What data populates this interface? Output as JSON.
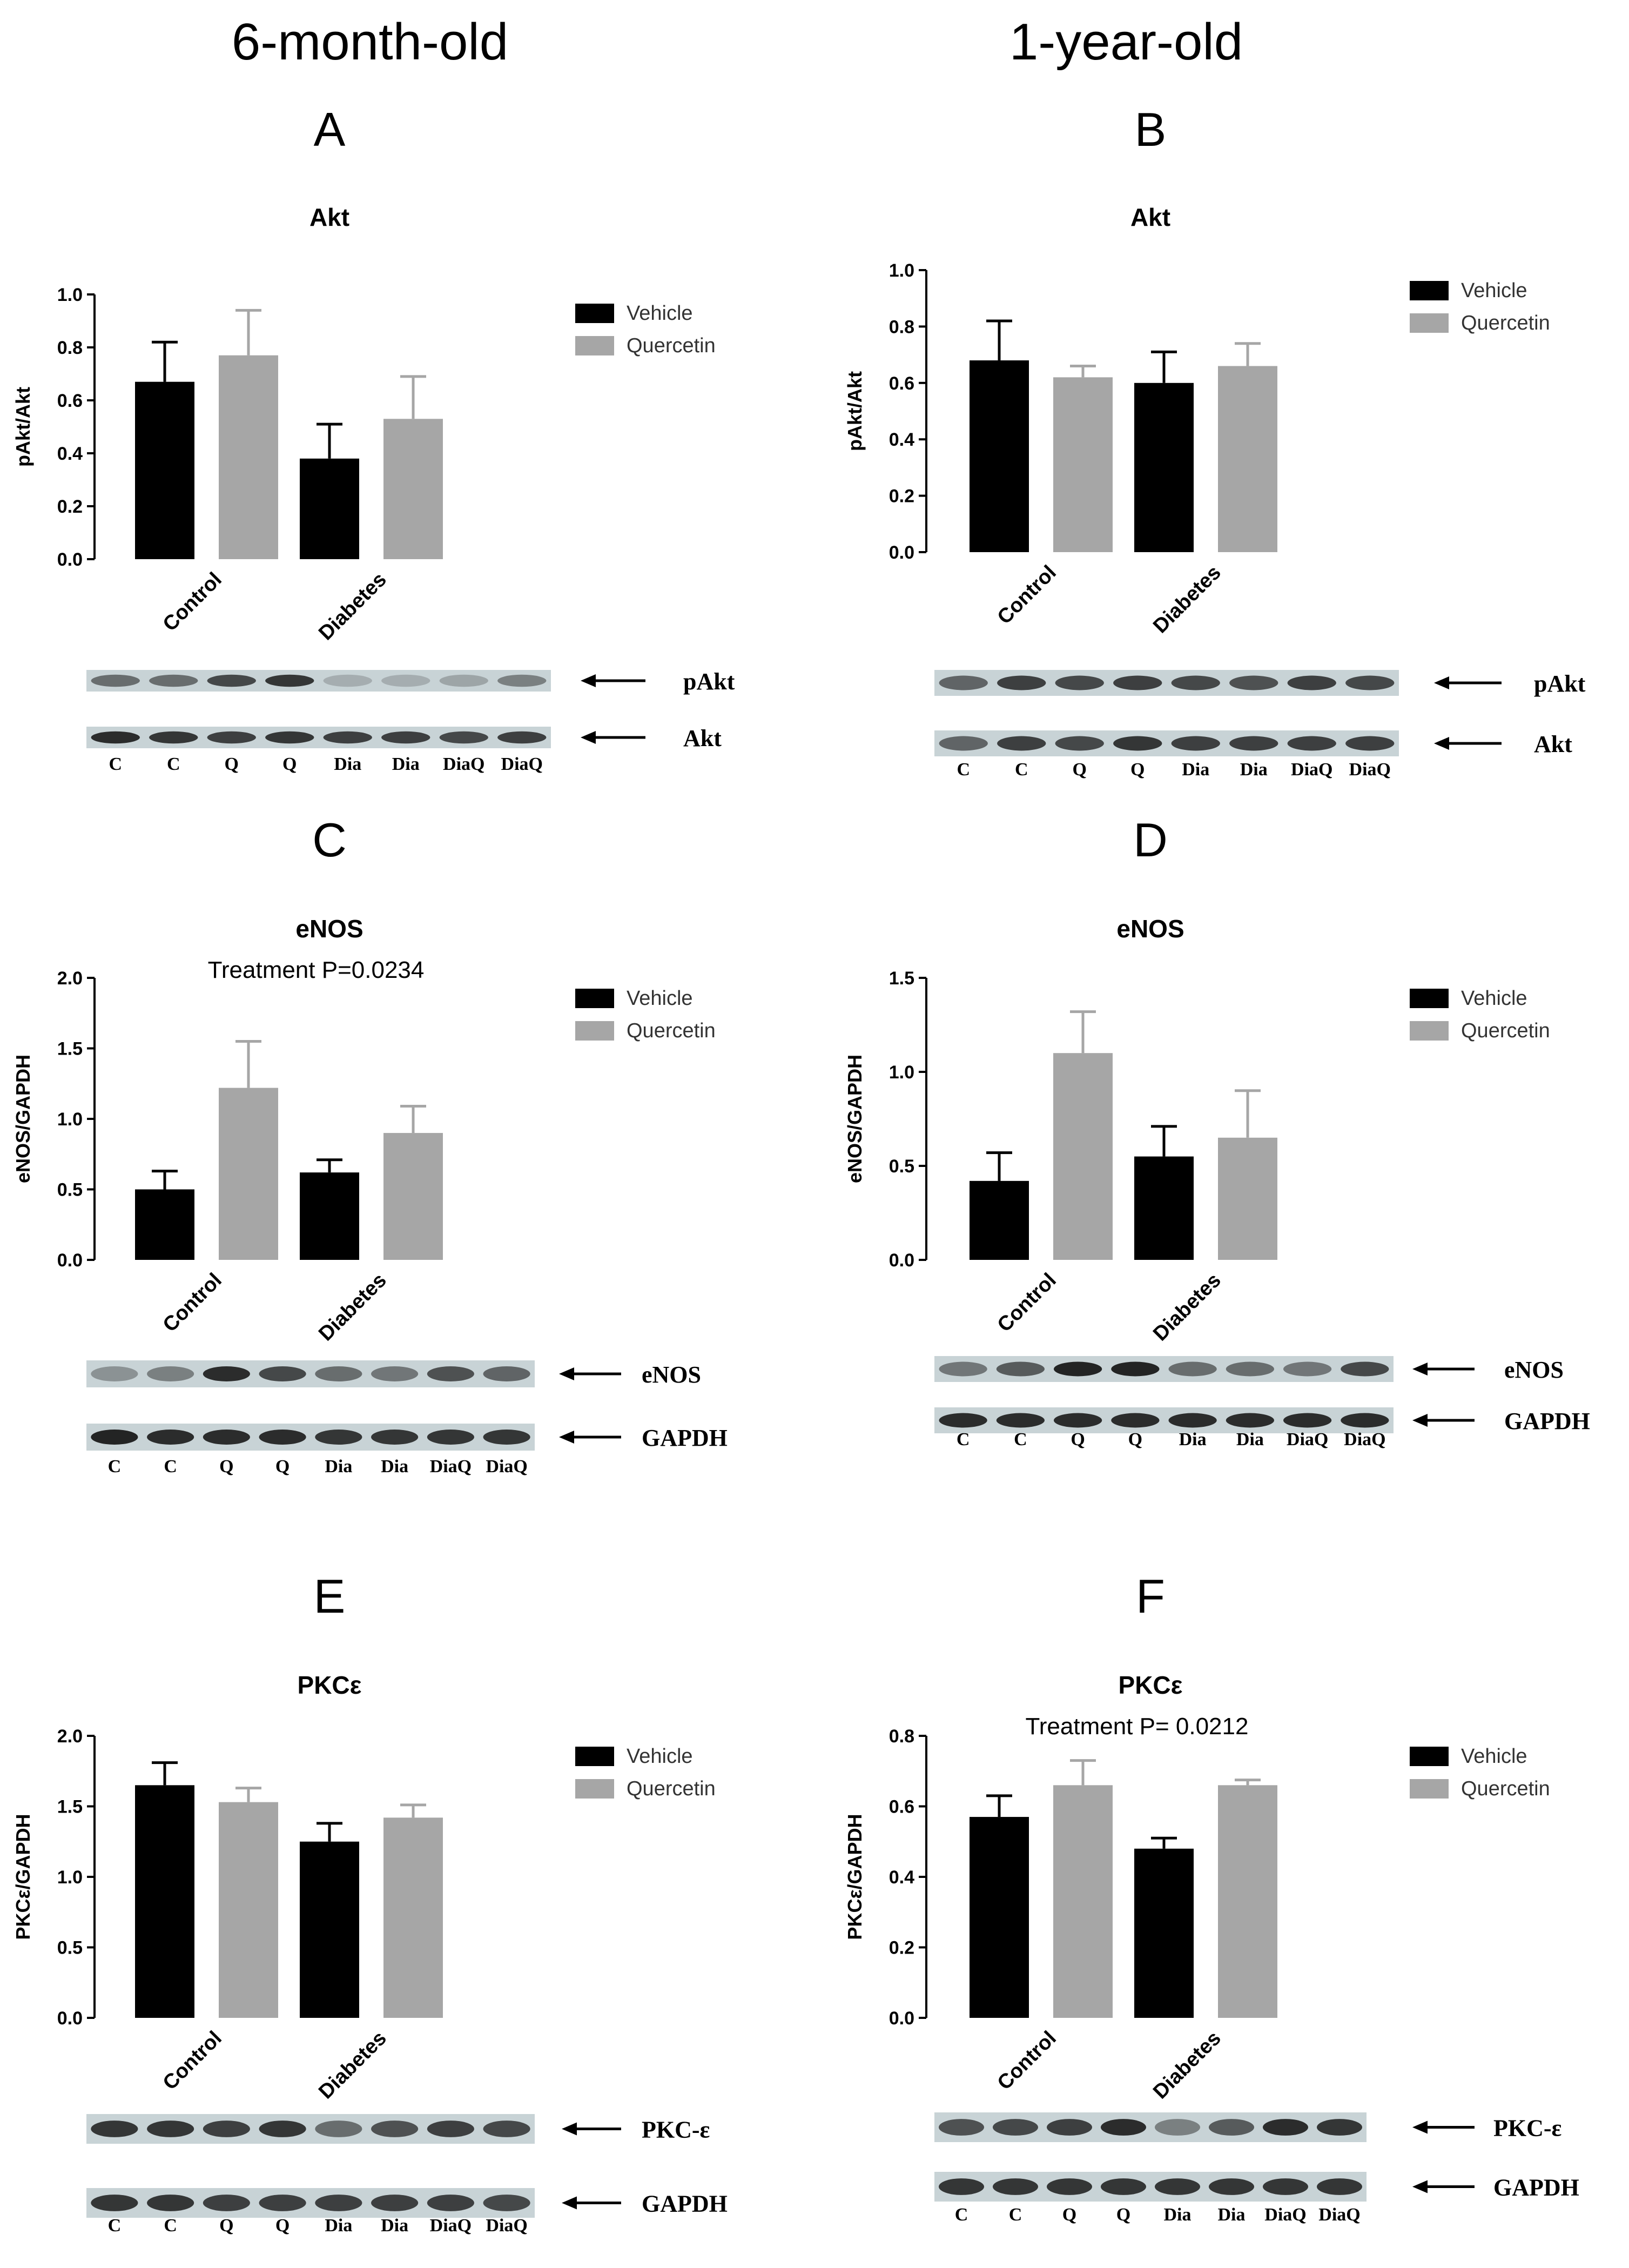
{
  "headers": {
    "left": "6-month-old",
    "right": "1-year-old"
  },
  "legend": {
    "vehicle": "Vehicle",
    "quercetin": "Quercetin"
  },
  "colors": {
    "vehicle": "#000000",
    "quercetin": "#a6a6a6",
    "blot_bg": "#c8d3d6",
    "band": "#1a1a1a"
  },
  "lanes": [
    "C",
    "C",
    "Q",
    "Q",
    "Dia",
    "Dia",
    "DiaQ",
    "DiaQ"
  ],
  "chart_data": [
    {
      "panel": "A",
      "type": "bar",
      "title": "Akt",
      "annotation": "",
      "categories": [
        "Control",
        "Diabetes"
      ],
      "ylabel": "pAkt/Akt",
      "ylim": [
        0,
        1.0
      ],
      "yticks": [
        "0.0",
        "0.2",
        "0.4",
        "0.6",
        "0.8",
        "1.0"
      ],
      "series": [
        {
          "name": "Vehicle",
          "values": [
            0.67,
            0.38
          ],
          "errors": [
            0.15,
            0.13
          ]
        },
        {
          "name": "Quercetin",
          "values": [
            0.77,
            0.53
          ],
          "errors": [
            0.17,
            0.16
          ]
        }
      ],
      "blots": [
        {
          "label": "pAkt",
          "intensity": [
            0.55,
            0.55,
            0.75,
            0.85,
            0.2,
            0.2,
            0.25,
            0.45
          ]
        },
        {
          "label": "Akt",
          "intensity": [
            0.9,
            0.85,
            0.8,
            0.85,
            0.8,
            0.8,
            0.75,
            0.8
          ]
        }
      ]
    },
    {
      "panel": "B",
      "type": "bar",
      "title": "Akt",
      "annotation": "",
      "categories": [
        "Control",
        "Diabetes"
      ],
      "ylabel": "pAkt/Akt",
      "ylim": [
        0,
        1.0
      ],
      "yticks": [
        "0.0",
        "0.2",
        "0.4",
        "0.6",
        "0.8",
        "1.0"
      ],
      "series": [
        {
          "name": "Vehicle",
          "values": [
            0.68,
            0.6
          ],
          "errors": [
            0.14,
            0.11
          ]
        },
        {
          "name": "Quercetin",
          "values": [
            0.62,
            0.66
          ],
          "errors": [
            0.04,
            0.08
          ]
        }
      ],
      "blots": [
        {
          "label": "pAkt",
          "intensity": [
            0.6,
            0.8,
            0.75,
            0.8,
            0.75,
            0.7,
            0.8,
            0.75
          ]
        },
        {
          "label": "Akt",
          "intensity": [
            0.6,
            0.8,
            0.75,
            0.85,
            0.8,
            0.8,
            0.8,
            0.8
          ]
        }
      ]
    },
    {
      "panel": "C",
      "type": "bar",
      "title": "eNOS",
      "annotation": "Treatment P=0.0234",
      "categories": [
        "Control",
        "Diabetes"
      ],
      "ylabel": "eNOS/GAPDH",
      "ylim": [
        0,
        2.0
      ],
      "yticks": [
        "0.0",
        "0.5",
        "1.0",
        "1.5",
        "2.0"
      ],
      "series": [
        {
          "name": "Vehicle",
          "values": [
            0.5,
            0.62
          ],
          "errors": [
            0.13,
            0.09
          ]
        },
        {
          "name": "Quercetin",
          "values": [
            1.22,
            0.9
          ],
          "errors": [
            0.33,
            0.19
          ]
        }
      ],
      "blots": [
        {
          "label": "eNOS",
          "intensity": [
            0.35,
            0.45,
            0.9,
            0.75,
            0.55,
            0.5,
            0.7,
            0.6
          ]
        },
        {
          "label": "GAPDH",
          "intensity": [
            0.95,
            0.9,
            0.9,
            0.9,
            0.85,
            0.85,
            0.85,
            0.85
          ]
        }
      ]
    },
    {
      "panel": "D",
      "type": "bar",
      "title": "eNOS",
      "annotation": "",
      "categories": [
        "Control",
        "Diabetes"
      ],
      "ylabel": "eNOS/GAPDH",
      "ylim": [
        0,
        1.5
      ],
      "yticks": [
        "0.0",
        "0.5",
        "1.0",
        "1.5"
      ],
      "series": [
        {
          "name": "Vehicle",
          "values": [
            0.42,
            0.55
          ],
          "errors": [
            0.15,
            0.16
          ]
        },
        {
          "name": "Quercetin",
          "values": [
            1.1,
            0.65
          ],
          "errors": [
            0.22,
            0.25
          ]
        }
      ],
      "blots": [
        {
          "label": "eNOS",
          "intensity": [
            0.5,
            0.65,
            0.95,
            0.95,
            0.55,
            0.55,
            0.5,
            0.75
          ]
        },
        {
          "label": "GAPDH",
          "intensity": [
            0.9,
            0.9,
            0.9,
            0.9,
            0.9,
            0.9,
            0.9,
            0.9
          ]
        }
      ]
    },
    {
      "panel": "E",
      "type": "bar",
      "title": "PKCε",
      "annotation": "",
      "categories": [
        "Control",
        "Diabetes"
      ],
      "ylabel": "PKCε/GAPDH",
      "ylim": [
        0,
        2.0
      ],
      "yticks": [
        "0.0",
        "0.5",
        "1.0",
        "1.5",
        "2.0"
      ],
      "series": [
        {
          "name": "Vehicle",
          "values": [
            1.65,
            1.25
          ],
          "errors": [
            0.16,
            0.13
          ]
        },
        {
          "name": "Quercetin",
          "values": [
            1.53,
            1.42
          ],
          "errors": [
            0.1,
            0.09
          ]
        }
      ],
      "blots": [
        {
          "label": "PKC-ε",
          "intensity": [
            0.85,
            0.85,
            0.8,
            0.85,
            0.55,
            0.7,
            0.8,
            0.75
          ]
        },
        {
          "label": "GAPDH",
          "intensity": [
            0.85,
            0.85,
            0.8,
            0.8,
            0.8,
            0.8,
            0.8,
            0.75
          ]
        }
      ]
    },
    {
      "panel": "F",
      "type": "bar",
      "title": "PKCε",
      "annotation": "Treatment P= 0.0212",
      "categories": [
        "Control",
        "Diabetes"
      ],
      "ylabel": "PKCε/GAPDH",
      "ylim": [
        0,
        0.8
      ],
      "yticks": [
        "0.0",
        "0.2",
        "0.4",
        "0.6",
        "0.8"
      ],
      "series": [
        {
          "name": "Vehicle",
          "values": [
            0.57,
            0.48
          ],
          "errors": [
            0.06,
            0.03
          ]
        },
        {
          "name": "Quercetin",
          "values": [
            0.66,
            0.66
          ],
          "errors": [
            0.07,
            0.015
          ]
        }
      ],
      "blots": [
        {
          "label": "PKC-ε",
          "intensity": [
            0.7,
            0.75,
            0.8,
            0.9,
            0.45,
            0.65,
            0.9,
            0.85
          ]
        },
        {
          "label": "GAPDH",
          "intensity": [
            0.85,
            0.85,
            0.85,
            0.85,
            0.85,
            0.85,
            0.85,
            0.85
          ]
        }
      ]
    }
  ]
}
